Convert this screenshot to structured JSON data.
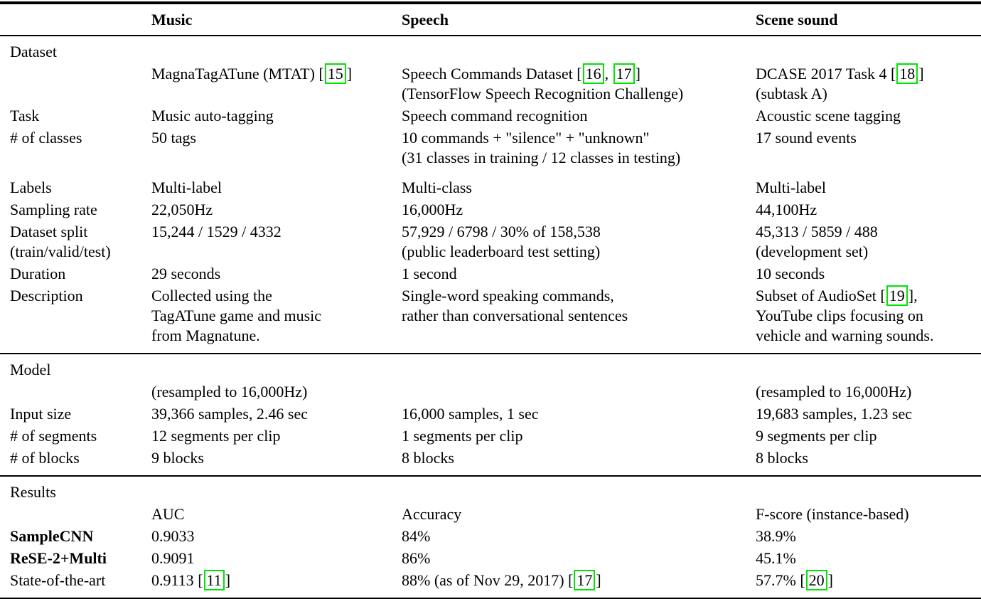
{
  "table": {
    "columns": [
      "",
      "Music",
      "Speech",
      "Scene sound"
    ],
    "citation_color": "#00e400",
    "sections": [
      {
        "rows": [
          {
            "label": "Dataset",
            "cells": [
              "",
              "",
              ""
            ]
          },
          {
            "label": "",
            "cells": [
              "MagnaTagATune (MTAT) [[15]]",
              "Speech Commands Dataset [[16, 17]]\n(TensorFlow Speech Recognition Challenge)",
              "DCASE 2017 Task 4 [[18]]\n(subtask A)"
            ]
          },
          {
            "label": "Task",
            "cells": [
              "Music auto-tagging",
              "Speech command recognition",
              "Acoustic scene tagging"
            ]
          },
          {
            "label": "# of classes",
            "cells": [
              "50 tags",
              "10 commands + \"silence\" + \"unknown\"\n(31 classes in training / 12 classes in testing)",
              "17 sound events"
            ]
          },
          {
            "label": "Labels",
            "cells": [
              "Multi-label",
              "Multi-class",
              "Multi-label"
            ]
          },
          {
            "label": "Sampling rate",
            "cells": [
              "22,050Hz",
              "16,000Hz",
              "44,100Hz"
            ]
          },
          {
            "label": "Dataset split\n(train/valid/test)",
            "cells": [
              "15,244 / 1529 / 4332",
              "57,929 / 6798 / 30% of 158,538\n(public leaderboard test setting)",
              "45,313 / 5859 / 488\n(development set)"
            ]
          },
          {
            "label": "Duration",
            "cells": [
              "29 seconds",
              "1 second",
              "10 seconds"
            ]
          },
          {
            "label": "Description",
            "cells": [
              "Collected using the\nTagATune game and music\nfrom Magnatune.",
              "Single-word speaking commands,\nrather than conversational sentences",
              "Subset of AudioSet [[19]],\nYouTube clips focusing on\nvehicle and warning sounds."
            ]
          }
        ]
      },
      {
        "rows": [
          {
            "label": "Model",
            "cells": [
              "",
              "",
              ""
            ]
          },
          {
            "label": "",
            "cells": [
              "(resampled to 16,000Hz)",
              "",
              "(resampled to 16,000Hz)"
            ]
          },
          {
            "label": "Input size",
            "cells": [
              "39,366 samples, 2.46 sec",
              "16,000 samples, 1 sec",
              "19,683 samples, 1.23 sec"
            ]
          },
          {
            "label": "# of segments",
            "cells": [
              "12 segments per clip",
              "1 segments per clip",
              "9 segments per clip"
            ]
          },
          {
            "label": "# of blocks",
            "cells": [
              "9 blocks",
              "8 blocks",
              "8 blocks"
            ]
          }
        ]
      },
      {
        "rows": [
          {
            "label": "Results",
            "cells": [
              "",
              "",
              ""
            ]
          },
          {
            "label": "",
            "cells": [
              "AUC",
              "Accuracy",
              "F-score (instance-based)"
            ]
          },
          {
            "label": "SampleCNN",
            "label_bold": true,
            "cells": [
              "0.9033",
              "84%",
              "38.9%"
            ]
          },
          {
            "label": "ReSE-2+Multi",
            "label_bold": true,
            "cells": [
              "0.9091",
              "86%",
              "45.1%"
            ]
          },
          {
            "label": "State-of-the-art",
            "cells": [
              "0.9113 [[11]]",
              "88% (as of Nov 29, 2017) [[17]]",
              "57.7% [[20]]"
            ]
          }
        ]
      }
    ]
  }
}
